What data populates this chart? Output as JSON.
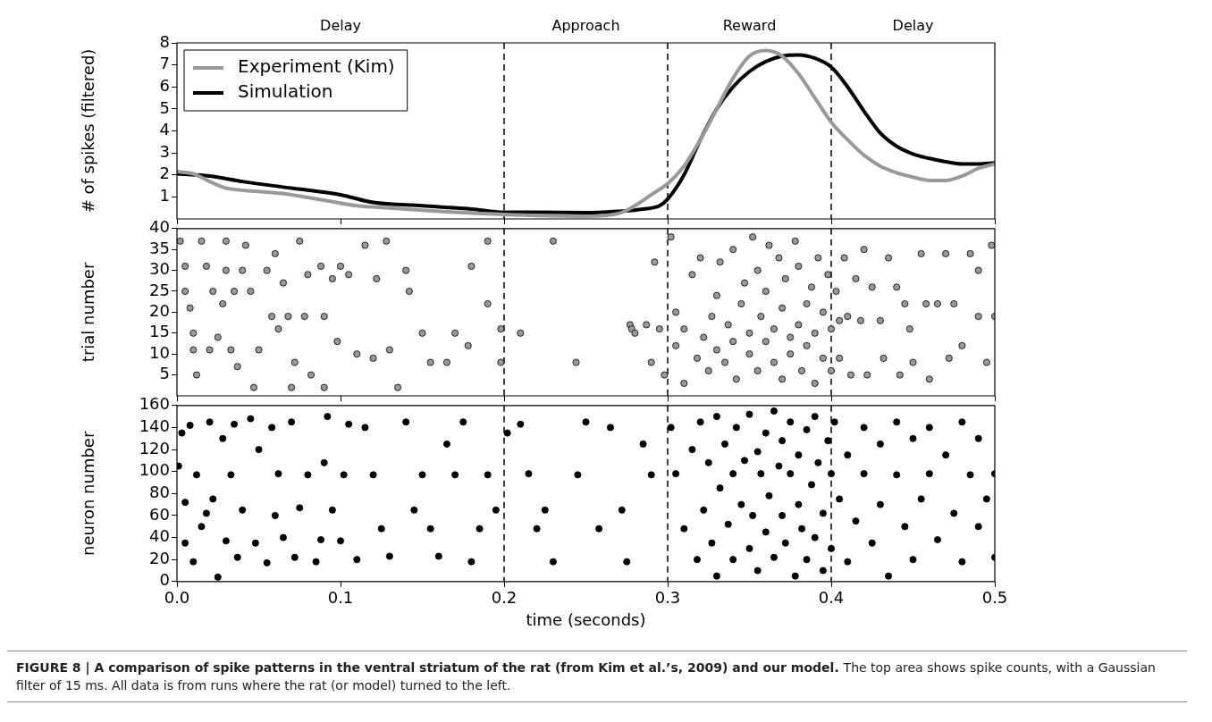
{
  "chart_data": [
    {
      "type": "line",
      "ylabel": "# of spikes (filtered)",
      "xlim": [
        0,
        0.5
      ],
      "xticks": [
        0,
        0.1,
        0.2,
        0.3,
        0.4,
        0.5
      ],
      "ylim": [
        0,
        8
      ],
      "yticks": [
        1,
        2,
        3,
        4,
        5,
        6,
        7,
        8
      ],
      "tick_labels": "y",
      "grid": false,
      "legend": "top left",
      "marker": "none",
      "line_style": "solid",
      "annotations": [
        "Delay",
        "Approach",
        "Reward",
        "Delay"
      ],
      "ref_lines": [
        {
          "axis": "x",
          "value": 0.2,
          "color": "#000000",
          "line_style": "dashed"
        },
        {
          "axis": "x",
          "value": 0.3,
          "color": "#000000",
          "line_style": "dashed"
        },
        {
          "axis": "x",
          "value": 0.4,
          "color": "#000000",
          "line_style": "dashed"
        }
      ],
      "series": [
        {
          "name": "Experiment (Kim)",
          "color": "#999999",
          "x": [
            0,
            0.01,
            0.02,
            0.03,
            0.05,
            0.07,
            0.09,
            0.11,
            0.13,
            0.15,
            0.17,
            0.2,
            0.22,
            0.25,
            0.27,
            0.28,
            0.29,
            0.3,
            0.31,
            0.32,
            0.33,
            0.34,
            0.35,
            0.36,
            0.37,
            0.38,
            0.39,
            0.4,
            0.41,
            0.42,
            0.43,
            0.44,
            0.45,
            0.46,
            0.47,
            0.48,
            0.49,
            0.5
          ],
          "values": [
            2.15,
            2.05,
            1.7,
            1.4,
            1.25,
            1.1,
            0.85,
            0.6,
            0.5,
            0.4,
            0.3,
            0.2,
            0.15,
            0.12,
            0.25,
            0.6,
            1.1,
            1.6,
            2.4,
            3.6,
            5.0,
            6.4,
            7.4,
            7.65,
            7.4,
            6.6,
            5.5,
            4.4,
            3.6,
            2.9,
            2.4,
            2.1,
            1.9,
            1.75,
            1.75,
            1.95,
            2.3,
            2.5
          ]
        },
        {
          "name": "Simulation",
          "color": "#000000",
          "x": [
            0,
            0.02,
            0.04,
            0.07,
            0.1,
            0.12,
            0.15,
            0.18,
            0.2,
            0.22,
            0.25,
            0.27,
            0.285,
            0.295,
            0.3,
            0.31,
            0.32,
            0.33,
            0.34,
            0.35,
            0.36,
            0.37,
            0.38,
            0.39,
            0.4,
            0.41,
            0.42,
            0.43,
            0.44,
            0.45,
            0.46,
            0.47,
            0.48,
            0.49,
            0.5
          ],
          "values": [
            2.05,
            1.95,
            1.7,
            1.4,
            1.1,
            0.75,
            0.6,
            0.45,
            0.3,
            0.3,
            0.28,
            0.35,
            0.45,
            0.6,
            0.9,
            2.0,
            3.6,
            5.0,
            6.0,
            6.7,
            7.15,
            7.4,
            7.45,
            7.3,
            6.9,
            6.0,
            4.9,
            3.9,
            3.3,
            2.95,
            2.75,
            2.6,
            2.5,
            2.5,
            2.55
          ]
        }
      ]
    },
    {
      "type": "scatter",
      "ylabel": "trial number",
      "xlim": [
        0,
        0.5
      ],
      "xticks": [
        0,
        0.1,
        0.2,
        0.3,
        0.4,
        0.5
      ],
      "ylim": [
        0,
        40
      ],
      "yticks": [
        5,
        10,
        15,
        20,
        25,
        30,
        35,
        40
      ],
      "tick_labels": "y",
      "grid": false,
      "marker": "circle",
      "ref_lines": [
        {
          "axis": "x",
          "value": 0.2,
          "color": "#000000",
          "line_style": "dashed"
        },
        {
          "axis": "x",
          "value": 0.3,
          "color": "#000000",
          "line_style": "dashed"
        },
        {
          "axis": "x",
          "value": 0.4,
          "color": "#000000",
          "line_style": "dashed"
        }
      ],
      "series": [
        {
          "color": "#999999",
          "x": [
            0.002,
            0.005,
            0.005,
            0.008,
            0.01,
            0.01,
            0.012,
            0.015,
            0.018,
            0.02,
            0.022,
            0.025,
            0.028,
            0.03,
            0.03,
            0.033,
            0.035,
            0.037,
            0.04,
            0.042,
            0.045,
            0.047,
            0.05,
            0.055,
            0.058,
            0.06,
            0.062,
            0.065,
            0.068,
            0.07,
            0.072,
            0.075,
            0.078,
            0.08,
            0.082,
            0.088,
            0.09,
            0.09,
            0.095,
            0.098,
            0.1,
            0.105,
            0.11,
            0.115,
            0.12,
            0.122,
            0.128,
            0.13,
            0.135,
            0.14,
            0.142,
            0.15,
            0.155,
            0.165,
            0.17,
            0.178,
            0.18,
            0.19,
            0.19,
            0.198,
            0.198,
            0.21,
            0.23,
            0.244,
            0.277,
            0.278,
            0.28,
            0.287,
            0.29,
            0.292,
            0.295,
            0.298,
            0.302,
            0.305,
            0.305,
            0.31,
            0.31,
            0.315,
            0.318,
            0.32,
            0.322,
            0.325,
            0.327,
            0.33,
            0.33,
            0.332,
            0.335,
            0.337,
            0.34,
            0.34,
            0.342,
            0.345,
            0.347,
            0.35,
            0.35,
            0.352,
            0.355,
            0.355,
            0.357,
            0.36,
            0.36,
            0.362,
            0.365,
            0.365,
            0.368,
            0.37,
            0.37,
            0.372,
            0.375,
            0.375,
            0.378,
            0.38,
            0.38,
            0.382,
            0.385,
            0.385,
            0.388,
            0.39,
            0.39,
            0.392,
            0.395,
            0.395,
            0.398,
            0.4,
            0.4,
            0.403,
            0.405,
            0.405,
            0.408,
            0.41,
            0.412,
            0.415,
            0.418,
            0.42,
            0.422,
            0.425,
            0.43,
            0.432,
            0.435,
            0.44,
            0.442,
            0.445,
            0.448,
            0.45,
            0.455,
            0.458,
            0.46,
            0.465,
            0.47,
            0.472,
            0.475,
            0.48,
            0.485,
            0.49,
            0.49,
            0.495,
            0.498,
            0.5
          ],
          "values": [
            37,
            31,
            25,
            21,
            15,
            11,
            5,
            37,
            31,
            11,
            25,
            14,
            22,
            30,
            37,
            11,
            25,
            7,
            30,
            36,
            25,
            2,
            11,
            30,
            19,
            34,
            16,
            27,
            19,
            2,
            8,
            37,
            19,
            29,
            5,
            31,
            2,
            19,
            28,
            13,
            31,
            29,
            10,
            36,
            9,
            28,
            37,
            11,
            2,
            30,
            25,
            15,
            8,
            8,
            15,
            12,
            31,
            37,
            22,
            16,
            8,
            15,
            37,
            8,
            17,
            16,
            15,
            17,
            8,
            32,
            16,
            5,
            38,
            20,
            12,
            16,
            3,
            29,
            9,
            33,
            14,
            6,
            19,
            24,
            11,
            32,
            8,
            17,
            35,
            13,
            4,
            22,
            27,
            10,
            15,
            38,
            30,
            6,
            19,
            13,
            25,
            36,
            16,
            8,
            33,
            21,
            4,
            28,
            14,
            10,
            37,
            17,
            31,
            6,
            22,
            12,
            26,
            15,
            3,
            33,
            9,
            20,
            29,
            16,
            6,
            25,
            18,
            9,
            33,
            19,
            5,
            28,
            18,
            35,
            5,
            26,
            18,
            9,
            33,
            26,
            5,
            22,
            16,
            8,
            34,
            22,
            4,
            22,
            34,
            9,
            22,
            12,
            34,
            19,
            30,
            8,
            36,
            19
          ]
        }
      ]
    },
    {
      "type": "scatter",
      "ylabel": "neuron number",
      "xlabel": "time (seconds)",
      "xlim": [
        0,
        0.5
      ],
      "xticks": [
        {
          "value": 0,
          "label": "0.0"
        },
        0.1,
        0.2,
        0.3,
        0.4,
        0.5
      ],
      "ylim": [
        0,
        160
      ],
      "yticks": [
        0,
        20,
        40,
        60,
        80,
        100,
        120,
        140,
        160
      ],
      "grid": false,
      "marker": "circle",
      "ref_lines": [
        {
          "axis": "x",
          "value": 0.2,
          "color": "#000000",
          "line_style": "dashed"
        },
        {
          "axis": "x",
          "value": 0.3,
          "color": "#000000",
          "line_style": "dashed"
        },
        {
          "axis": "x",
          "value": 0.4,
          "color": "#000000",
          "line_style": "dashed"
        }
      ],
      "annotations": [
        "FIGURE 8 | A comparison of spike patterns in the ventral striatum of the rat (from Kim et al.’s, 2009) and our model.",
        "The top area shows spike counts, with a Gaussian filter of 15 ms. All data is from runs where the rat (or model) turned to the left."
      ],
      "series": [
        {
          "color": "#000000",
          "x": [
            0.001,
            0.003,
            0.005,
            0.005,
            0.008,
            0.01,
            0.012,
            0.015,
            0.018,
            0.02,
            0.022,
            0.025,
            0.028,
            0.03,
            0.033,
            0.035,
            0.037,
            0.04,
            0.045,
            0.048,
            0.05,
            0.055,
            0.058,
            0.06,
            0.062,
            0.065,
            0.07,
            0.072,
            0.075,
            0.08,
            0.085,
            0.088,
            0.09,
            0.092,
            0.095,
            0.1,
            0.102,
            0.105,
            0.11,
            0.115,
            0.12,
            0.125,
            0.13,
            0.14,
            0.145,
            0.15,
            0.155,
            0.16,
            0.165,
            0.17,
            0.175,
            0.18,
            0.185,
            0.19,
            0.195,
            0.202,
            0.21,
            0.215,
            0.22,
            0.225,
            0.23,
            0.245,
            0.25,
            0.258,
            0.265,
            0.272,
            0.275,
            0.285,
            0.29,
            0.302,
            0.305,
            0.31,
            0.315,
            0.318,
            0.32,
            0.322,
            0.325,
            0.327,
            0.33,
            0.33,
            0.332,
            0.335,
            0.337,
            0.34,
            0.34,
            0.342,
            0.345,
            0.347,
            0.35,
            0.35,
            0.352,
            0.355,
            0.355,
            0.357,
            0.36,
            0.36,
            0.362,
            0.365,
            0.365,
            0.368,
            0.37,
            0.37,
            0.372,
            0.375,
            0.375,
            0.378,
            0.38,
            0.38,
            0.382,
            0.385,
            0.385,
            0.388,
            0.39,
            0.39,
            0.392,
            0.395,
            0.395,
            0.398,
            0.4,
            0.4,
            0.402,
            0.405,
            0.41,
            0.41,
            0.415,
            0.42,
            0.42,
            0.425,
            0.43,
            0.43,
            0.435,
            0.44,
            0.44,
            0.445,
            0.45,
            0.45,
            0.455,
            0.46,
            0.46,
            0.465,
            0.47,
            0.475,
            0.48,
            0.48,
            0.485,
            0.49,
            0.49,
            0.495,
            0.5,
            0.5
          ],
          "values": [
            105,
            135,
            72,
            35,
            142,
            18,
            97,
            50,
            62,
            145,
            75,
            4,
            130,
            37,
            97,
            143,
            22,
            65,
            148,
            35,
            120,
            17,
            140,
            60,
            98,
            40,
            145,
            22,
            67,
            97,
            18,
            38,
            108,
            150,
            65,
            37,
            97,
            143,
            20,
            140,
            97,
            48,
            23,
            145,
            65,
            97,
            48,
            23,
            125,
            97,
            145,
            18,
            48,
            97,
            65,
            135,
            143,
            98,
            48,
            65,
            18,
            97,
            145,
            48,
            140,
            65,
            18,
            125,
            97,
            140,
            98,
            48,
            120,
            20,
            145,
            65,
            108,
            35,
            150,
            5,
            85,
            125,
            52,
            98,
            20,
            140,
            70,
            110,
            30,
            152,
            60,
            118,
            10,
            98,
            45,
            135,
            78,
            22,
            155,
            105,
            60,
            128,
            35,
            98,
            145,
            5,
            70,
            115,
            48,
            138,
            20,
            88,
            150,
            40,
            108,
            62,
            10,
            128,
            98,
            30,
            145,
            75,
            115,
            18,
            55,
            140,
            98,
            35,
            125,
            70,
            5,
            97,
            145,
            50,
            20,
            130,
            75,
            98,
            140,
            38,
            115,
            62,
            18,
            145,
            97,
            50,
            130,
            75,
            98,
            22
          ]
        }
      ]
    }
  ]
}
